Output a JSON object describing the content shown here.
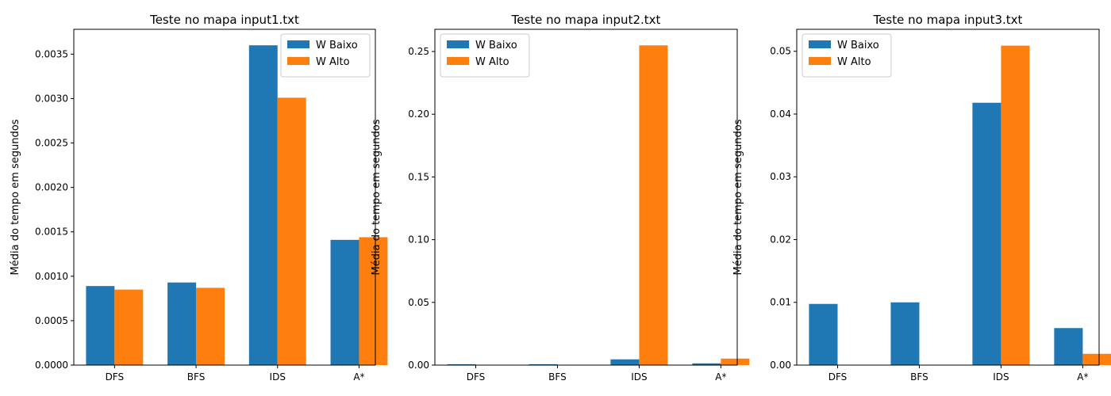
{
  "chart_data": [
    {
      "type": "bar",
      "title": "Teste no mapa input1.txt",
      "xlabel": "",
      "ylabel": "Média do tempo em segundos",
      "categories": [
        "DFS",
        "BFS",
        "IDS",
        "A*"
      ],
      "series": [
        {
          "name": "W Baixo",
          "color": "#1f77b4",
          "values": [
            0.00089,
            0.00093,
            0.0036,
            0.00141
          ]
        },
        {
          "name": "W Alto",
          "color": "#ff7f0e",
          "values": [
            0.00085,
            0.00087,
            0.00301,
            0.00144
          ]
        }
      ],
      "ylim": [
        0,
        0.00378
      ],
      "yticks": [
        0,
        0.0005,
        0.001,
        0.0015,
        0.002,
        0.0025,
        0.003,
        0.0035
      ],
      "ytick_labels": [
        "0.0000",
        "0.0005",
        "0.0010",
        "0.0015",
        "0.0020",
        "0.0025",
        "0.0030",
        "0.0035"
      ],
      "legend_position": "top-right",
      "grid": false
    },
    {
      "type": "bar",
      "title": "Teste no mapa input2.txt",
      "xlabel": "",
      "ylabel": "Média do tempo em segundos",
      "categories": [
        "DFS",
        "BFS",
        "IDS",
        "A*"
      ],
      "series": [
        {
          "name": "W Baixo",
          "color": "#1f77b4",
          "values": [
            0.0007,
            0.0007,
            0.0046,
            0.0014
          ]
        },
        {
          "name": "W Alto",
          "color": "#ff7f0e",
          "values": [
            0.0002,
            0.0002,
            0.2549,
            0.0052
          ]
        }
      ],
      "ylim": [
        0,
        0.2677
      ],
      "yticks": [
        0,
        0.05,
        0.1,
        0.15,
        0.2,
        0.25
      ],
      "ytick_labels": [
        "0.00",
        "0.05",
        "0.10",
        "0.15",
        "0.20",
        "0.25"
      ],
      "legend_position": "top-left",
      "grid": false
    },
    {
      "type": "bar",
      "title": "Teste no mapa input3.txt",
      "xlabel": "",
      "ylabel": "Média do tempo em segundos",
      "categories": [
        "DFS",
        "BFS",
        "IDS",
        "A*"
      ],
      "series": [
        {
          "name": "W Baixo",
          "color": "#1f77b4",
          "values": [
            0.00975,
            0.01,
            0.0418,
            0.0059
          ]
        },
        {
          "name": "W Alto",
          "color": "#ff7f0e",
          "values": [
            0.0,
            0.0,
            0.0509,
            0.0018
          ]
        }
      ],
      "ylim": [
        0,
        0.0535
      ],
      "yticks": [
        0,
        0.01,
        0.02,
        0.03,
        0.04,
        0.05
      ],
      "ytick_labels": [
        "0.00",
        "0.01",
        "0.02",
        "0.03",
        "0.04",
        "0.05"
      ],
      "legend_position": "top-left",
      "grid": false
    }
  ]
}
